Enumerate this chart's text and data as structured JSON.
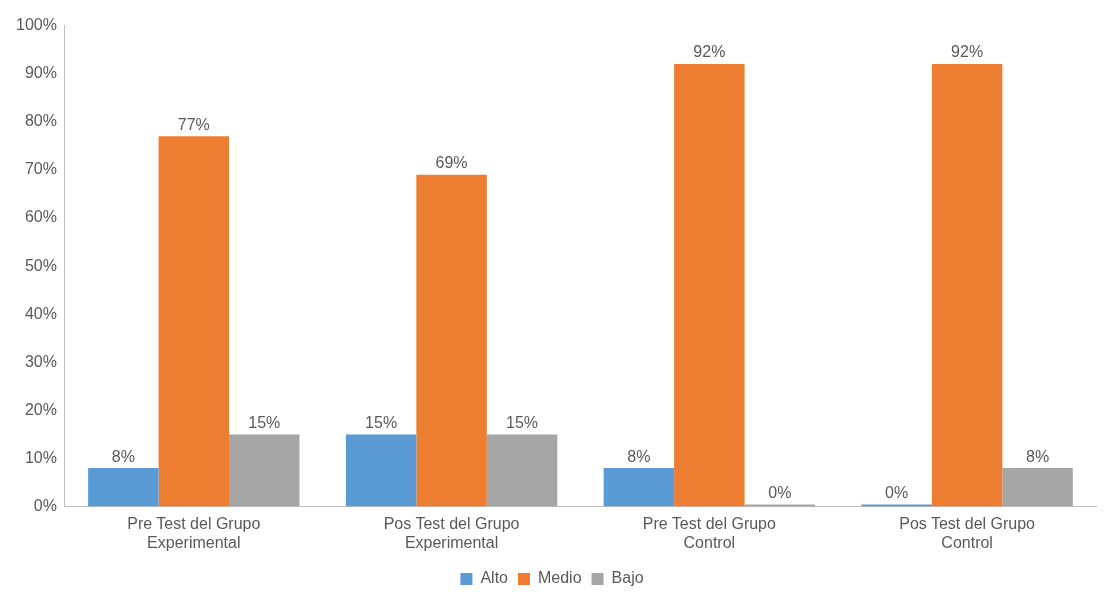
{
  "chart_data": {
    "type": "bar",
    "categories": [
      "Pre Test del Grupo Experimental",
      "Pos Test del Grupo Experimental",
      "Pre Test del Grupo Control",
      "Pos Test del Grupo Control"
    ],
    "series": [
      {
        "name": "Alto",
        "color": "#5b9bd5",
        "values": [
          8,
          15,
          8,
          0
        ],
        "value_labels": [
          "8%",
          "15%",
          "8%",
          "0%"
        ]
      },
      {
        "name": "Medio",
        "color": "#ed7d31",
        "values": [
          77,
          69,
          92,
          92
        ],
        "value_labels": [
          "77%",
          "69%",
          "92%",
          "92%"
        ]
      },
      {
        "name": "Bajo",
        "color": "#a5a5a5",
        "values": [
          15,
          15,
          0,
          8
        ],
        "value_labels": [
          "15%",
          "15%",
          "0%",
          "8%"
        ]
      }
    ],
    "ylim": [
      0,
      100
    ],
    "yticks": [
      {
        "value": 0,
        "label": "0%"
      },
      {
        "value": 10,
        "label": "10%"
      },
      {
        "value": 20,
        "label": "20%"
      },
      {
        "value": 30,
        "label": "30%"
      },
      {
        "value": 40,
        "label": "40%"
      },
      {
        "value": 50,
        "label": "50%"
      },
      {
        "value": 60,
        "label": "60%"
      },
      {
        "value": 70,
        "label": "70%"
      },
      {
        "value": 80,
        "label": "80%"
      },
      {
        "value": 90,
        "label": "90%"
      },
      {
        "value": 100,
        "label": "100%"
      }
    ],
    "grid": false,
    "legend": "bottom"
  }
}
